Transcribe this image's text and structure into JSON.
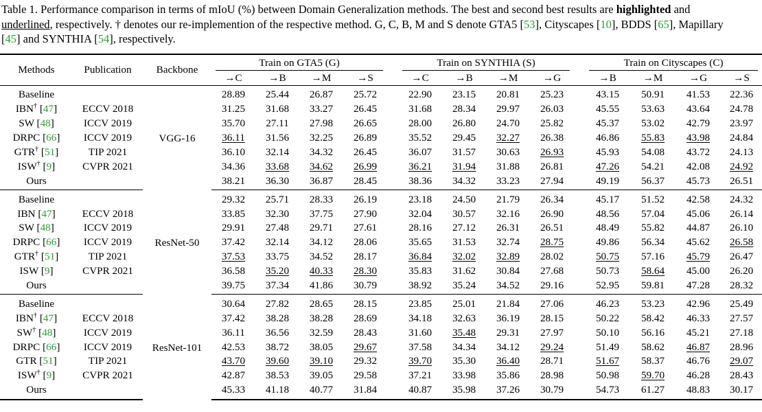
{
  "caption": {
    "part1": "Table 1. Performance comparison in terms of mIoU (%) between Domain Generalization methods. The best and second best results are ",
    "bold_word": "highlighted",
    "part2": " and ",
    "underline_word": "underlined",
    "part3": ", respectively. † denotes our re-implemention of the respective method. G, C, B, M and S denote GTA5 [",
    "cite_gta5": "53",
    "part4": "], Cityscapes [",
    "cite_cityscapes": "10",
    "part5": "], BDDS [",
    "cite_bdds": "65",
    "part6": "], Mapillary [",
    "cite_mapillary": "45",
    "part7": "] and SYNTHIA [",
    "cite_synthia": "54",
    "part8": "], respectively."
  },
  "header": {
    "methods": "Methods",
    "publication": "Publication",
    "backbone": "Backbone",
    "groups": [
      "Train on GTA5 (G)",
      "Train on SYNTHIA (S)",
      "Train on Cityscapes (C)"
    ],
    "subcols": [
      [
        "→C",
        "→B",
        "→M",
        "→S"
      ],
      [
        "→C",
        "→B",
        "→M",
        "→G"
      ],
      [
        "→B",
        "→M",
        "→G",
        "→S"
      ]
    ]
  },
  "blocks": [
    {
      "backbone": "VGG-16",
      "rows": [
        {
          "method": "Baseline",
          "dagger": "",
          "cite": "",
          "pub": "",
          "values": [
            "28.89",
            "25.44",
            "26.87",
            "25.72",
            "22.90",
            "23.15",
            "20.81",
            "25.23",
            "43.15",
            "50.91",
            "41.53",
            "22.36"
          ],
          "bold": [],
          "under": []
        },
        {
          "method": "IBN",
          "dagger": "†",
          "cite": "47",
          "pub": "ECCV 2018",
          "values": [
            "31.25",
            "31.68",
            "33.27",
            "26.45",
            "31.68",
            "28.34",
            "29.97",
            "26.03",
            "45.55",
            "53.63",
            "43.64",
            "24.78"
          ],
          "bold": [],
          "under": []
        },
        {
          "method": "SW",
          "dagger": "",
          "cite": "48",
          "pub": "ICCV 2019",
          "values": [
            "35.70",
            "27.11",
            "27.98",
            "26.65",
            "28.00",
            "26.80",
            "24.70",
            "25.82",
            "45.37",
            "53.02",
            "42.79",
            "23.97"
          ],
          "bold": [],
          "under": []
        },
        {
          "method": "DRPC",
          "dagger": "",
          "cite": "66",
          "pub": "ICCV 2019",
          "values": [
            "36.11",
            "31.56",
            "32.25",
            "26.89",
            "35.52",
            "29.45",
            "32.27",
            "26.38",
            "46.86",
            "55.83",
            "43.98",
            "24.84"
          ],
          "bold": [],
          "under": [
            0,
            6,
            9,
            10
          ]
        },
        {
          "method": "GTR",
          "dagger": "†",
          "cite": "51",
          "pub": "TIP 2021",
          "values": [
            "36.10",
            "32.14",
            "34.32",
            "26.45",
            "36.07",
            "31.57",
            "30.63",
            "26.93",
            "45.93",
            "54.08",
            "43.72",
            "24.13"
          ],
          "bold": [],
          "under": [
            7
          ]
        },
        {
          "method": "ISW",
          "dagger": "†",
          "cite": "9",
          "pub": "CVPR 2021",
          "values": [
            "34.36",
            "33.68",
            "34.62",
            "26.99",
            "36.21",
            "31.94",
            "31.88",
            "26.81",
            "47.26",
            "54.21",
            "42.08",
            "24.92"
          ],
          "bold": [],
          "under": [
            1,
            2,
            3,
            4,
            5,
            8,
            11
          ]
        },
        {
          "method": "Ours",
          "dagger": "",
          "cite": "",
          "pub": "",
          "values": [
            "38.21",
            "36.30",
            "36.87",
            "28.45",
            "38.36",
            "34.32",
            "33.23",
            "27.94",
            "49.19",
            "56.37",
            "45.73",
            "26.51"
          ],
          "bold": [
            0,
            1,
            2,
            3,
            4,
            5,
            6,
            7,
            8,
            9,
            10,
            11
          ],
          "under": []
        }
      ]
    },
    {
      "backbone": "ResNet-50",
      "rows": [
        {
          "method": "Baseline",
          "dagger": "",
          "cite": "",
          "pub": "",
          "values": [
            "29.32",
            "25.71",
            "28.33",
            "26.19",
            "23.18",
            "24.50",
            "21.79",
            "26.34",
            "45.17",
            "51.52",
            "42.58",
            "24.32"
          ],
          "bold": [],
          "under": []
        },
        {
          "method": "IBN",
          "dagger": "",
          "cite": "47",
          "pub": "ECCV 2018",
          "values": [
            "33.85",
            "32.30",
            "37.75",
            "27.90",
            "32.04",
            "30.57",
            "32.16",
            "26.90",
            "48.56",
            "57.04",
            "45.06",
            "26.14"
          ],
          "bold": [],
          "under": []
        },
        {
          "method": "SW",
          "dagger": "",
          "cite": "48",
          "pub": "ICCV 2019",
          "values": [
            "29.91",
            "27.48",
            "29.71",
            "27.61",
            "28.16",
            "27.12",
            "26.31",
            "26.51",
            "48.49",
            "55.82",
            "44.87",
            "26.10"
          ],
          "bold": [],
          "under": []
        },
        {
          "method": "DRPC",
          "dagger": "",
          "cite": "66",
          "pub": "ICCV 2019",
          "values": [
            "37.42",
            "32.14",
            "34.12",
            "28.06",
            "35.65",
            "31.53",
            "32.74",
            "28.75",
            "49.86",
            "56.34",
            "45.62",
            "26.58"
          ],
          "bold": [],
          "under": [
            7,
            11
          ]
        },
        {
          "method": "GTR",
          "dagger": "†",
          "cite": "51",
          "pub": "TIP 2021",
          "values": [
            "37.53",
            "33.75",
            "34.52",
            "28.17",
            "36.84",
            "32.02",
            "32.89",
            "28.02",
            "50.75",
            "57.16",
            "45.79",
            "26.47"
          ],
          "bold": [],
          "under": [
            0,
            4,
            5,
            6,
            8,
            10
          ]
        },
        {
          "method": "ISW",
          "dagger": "",
          "cite": "9",
          "pub": "CVPR 2021",
          "values": [
            "36.58",
            "35.20",
            "40.33",
            "28.30",
            "35.83",
            "31.62",
            "30.84",
            "27.68",
            "50.73",
            "58.64",
            "45.00",
            "26.20"
          ],
          "bold": [],
          "under": [
            1,
            2,
            3,
            9
          ]
        },
        {
          "method": "Ours",
          "dagger": "",
          "cite": "",
          "pub": "",
          "values": [
            "39.75",
            "37.34",
            "41.86",
            "30.79",
            "38.92",
            "35.24",
            "34.52",
            "29.16",
            "52.95",
            "59.81",
            "47.28",
            "28.32"
          ],
          "bold": [
            0,
            1,
            2,
            3,
            4,
            5,
            6,
            7,
            8,
            9,
            10,
            11
          ],
          "under": []
        }
      ]
    },
    {
      "backbone": "ResNet-101",
      "rows": [
        {
          "method": "Baseline",
          "dagger": "",
          "cite": "",
          "pub": "",
          "values": [
            "30.64",
            "27.82",
            "28.65",
            "28.15",
            "23.85",
            "25.01",
            "21.84",
            "27.06",
            "46.23",
            "53.23",
            "42.96",
            "25.49"
          ],
          "bold": [],
          "under": []
        },
        {
          "method": "IBN",
          "dagger": "†",
          "cite": "47",
          "pub": "ECCV 2018",
          "values": [
            "37.42",
            "38.28",
            "38.28",
            "28.69",
            "34.18",
            "32.63",
            "36.19",
            "28.15",
            "50.22",
            "58.42",
            "46.33",
            "27.57"
          ],
          "bold": [],
          "under": []
        },
        {
          "method": "SW",
          "dagger": "†",
          "cite": "48",
          "pub": "ICCV 2019",
          "values": [
            "36.11",
            "36.56",
            "32.59",
            "28.43",
            "31.60",
            "35.48",
            "29.31",
            "27.97",
            "50.10",
            "56.16",
            "45.21",
            "27.18"
          ],
          "bold": [],
          "under": [
            5
          ]
        },
        {
          "method": "DRPC",
          "dagger": "",
          "cite": "66",
          "pub": "ICCV 2019",
          "values": [
            "42.53",
            "38.72",
            "38.05",
            "29.67",
            "37.58",
            "34.34",
            "34.12",
            "29.24",
            "51.49",
            "58.62",
            "46.87",
            "28.96"
          ],
          "bold": [],
          "under": [
            3,
            7,
            10
          ]
        },
        {
          "method": "GTR",
          "dagger": "",
          "cite": "51",
          "pub": "TIP 2021",
          "values": [
            "43.70",
            "39.60",
            "39.10",
            "29.32",
            "39.70",
            "35.30",
            "36.40",
            "28.71",
            "51.67",
            "58.37",
            "46.76",
            "29.07"
          ],
          "bold": [],
          "under": [
            0,
            1,
            2,
            4,
            6,
            8,
            11
          ]
        },
        {
          "method": "ISW",
          "dagger": "†",
          "cite": "9",
          "pub": "CVPR 2021",
          "values": [
            "42.87",
            "38.53",
            "39.05",
            "29.58",
            "37.21",
            "33.98",
            "35.86",
            "28.98",
            "50.98",
            "59.70",
            "46.28",
            "28.43"
          ],
          "bold": [],
          "under": [
            9
          ]
        },
        {
          "method": "Ours",
          "dagger": "",
          "cite": "",
          "pub": "",
          "values": [
            "45.33",
            "41.18",
            "40.77",
            "31.84",
            "40.87",
            "35.98",
            "37.26",
            "30.79",
            "54.73",
            "61.27",
            "48.83",
            "30.17"
          ],
          "bold": [
            0,
            1,
            2,
            3,
            4,
            5,
            6,
            7,
            8,
            9,
            10,
            11
          ],
          "under": []
        }
      ]
    }
  ]
}
